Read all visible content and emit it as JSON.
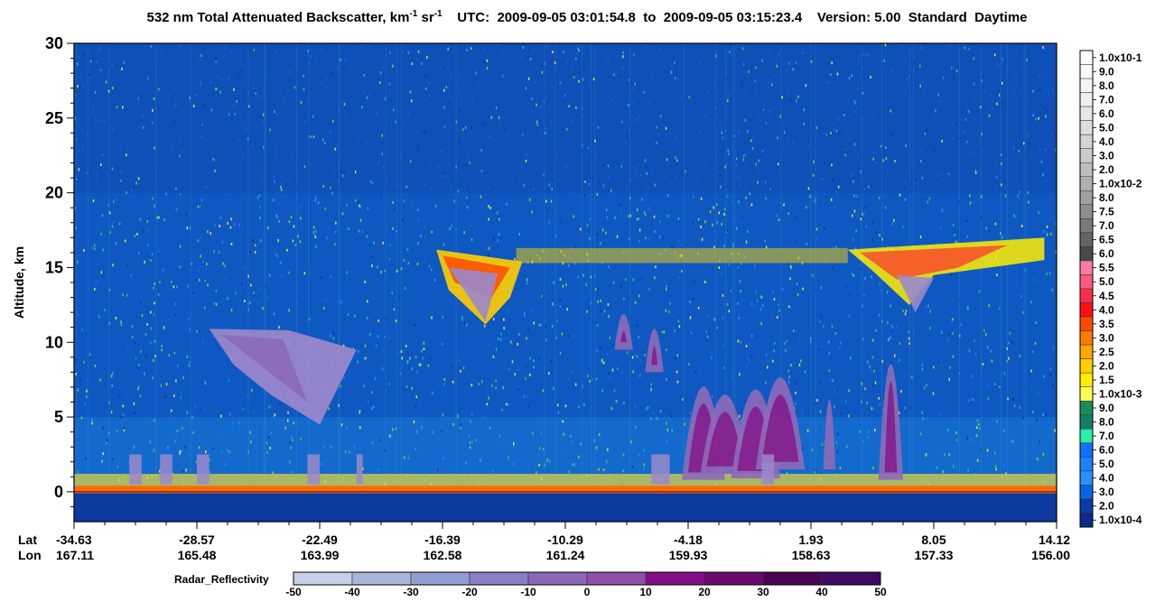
{
  "title": {
    "main": "532 nm Total Attenuated Backscatter, km",
    "exp1": "-1",
    "sr": " sr",
    "exp2": "-1",
    "utc_label": "UTC:",
    "start": "2009-09-05 03:01:54.8",
    "to": "to",
    "end": "2009-09-05 03:15:23.4",
    "version_label": "Version: 5.00",
    "product": "Standard",
    "daytime": "Daytime"
  },
  "chart_data": {
    "type": "heatmap",
    "ylabel": "Altitude, km",
    "ylim": [
      -2,
      30
    ],
    "yticks": [
      0,
      5,
      10,
      15,
      20,
      25,
      30
    ],
    "row_labels": [
      "Lat",
      "Lon"
    ],
    "x_ticks": [
      {
        "lat": "-34.63",
        "lon": "167.11"
      },
      {
        "lat": "-28.57",
        "lon": "165.48"
      },
      {
        "lat": "-22.49",
        "lon": "163.99"
      },
      {
        "lat": "-16.39",
        "lon": "162.58"
      },
      {
        "lat": "-10.29",
        "lon": "161.24"
      },
      {
        "lat": "-4.18",
        "lon": "159.93"
      },
      {
        "lat": "1.93",
        "lon": "158.63"
      },
      {
        "lat": "8.05",
        "lon": "157.33"
      },
      {
        "lat": "14.12",
        "lon": "156.00"
      }
    ],
    "colorbar": {
      "labels": [
        "1.0x10-1",
        "9.0",
        "8.0",
        "7.0",
        "6.0",
        "5.0",
        "4.0",
        "3.0",
        "2.0",
        "1.0x10-2",
        "8.0",
        "7.5",
        "7.0",
        "6.5",
        "6.0",
        "5.5",
        "5.0",
        "4.5",
        "4.0",
        "3.5",
        "3.0",
        "2.5",
        "2.0",
        "1.5",
        "1.0x10-3",
        "9.0",
        "8.0",
        "7.0",
        "6.0",
        "5.0",
        "4.0",
        "3.0",
        "2.0",
        "1.0x10-4"
      ],
      "colors": [
        "#ffffff",
        "#fafafa",
        "#f4f4f4",
        "#eeeeee",
        "#e6e6e6",
        "#dedede",
        "#d4d4d4",
        "#cacaca",
        "#bebebe",
        "#b0b0b0",
        "#a0a0a0",
        "#8e8e8e",
        "#7a7a7a",
        "#646464",
        "#4a4a4a",
        "#ff7ba0",
        "#ff5a78",
        "#ff2c50",
        "#ff1010",
        "#ff4a00",
        "#ff7a00",
        "#ffa800",
        "#ffcf00",
        "#ffee00",
        "#ffff50",
        "#188c5a",
        "#10806a",
        "#28f0a8",
        "#1070ff",
        "#1a82ff",
        "#2a90ff",
        "#0a64e8",
        "#0c3aa6",
        "#0a2a8c"
      ]
    },
    "radar": {
      "label": "Radar_Reflectivity",
      "ticks": [
        -50,
        -40,
        -30,
        -20,
        -10,
        0,
        10,
        20,
        30,
        40,
        50
      ],
      "colors": [
        "#c6d0e6",
        "#a8b6db",
        "#919ed0",
        "#8a7fc4",
        "#8b67b8",
        "#8e50a8",
        "#830f86",
        "#6a0a6e",
        "#4a0652",
        "#3e0a64",
        "#3a0a86"
      ]
    },
    "features": [
      {
        "name": "ground return",
        "altitude_km": [
          -0.5,
          0.3
        ],
        "lat_range": [
          "-34.63",
          "14.12"
        ]
      },
      {
        "name": "cirrus anvil",
        "altitude_km": [
          11,
          16.5
        ],
        "lat_range": [
          "-16.39",
          "-10.29"
        ]
      },
      {
        "name": "cirrus anvil",
        "altitude_km": [
          12,
          17
        ],
        "lat_range": [
          "1.93",
          "14.12"
        ]
      },
      {
        "name": "deep convection radar echo",
        "altitude_km": [
          0.5,
          15.5
        ],
        "lat_range": [
          "-10.29",
          "1.93"
        ]
      },
      {
        "name": "mid-level cloud radar echo",
        "altitude_km": [
          5,
          11
        ],
        "lat_range": [
          "-28.57",
          "-22.49"
        ]
      }
    ]
  }
}
